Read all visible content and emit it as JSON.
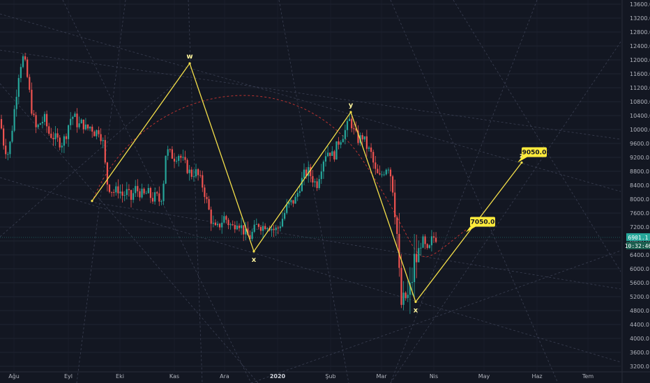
{
  "chart_data": {
    "type": "candlestick",
    "price_axis": {
      "min": 3200,
      "max": 13600,
      "ticks": [
        "13600.0",
        "13200.0",
        "12800.0",
        "12400.0",
        "12000.0",
        "11600.0",
        "11200.0",
        "10800.0",
        "10400.0",
        "10000.0",
        "9600.0",
        "9200.0",
        "8800.0",
        "8400.0",
        "8000.0",
        "7600.0",
        "7200.0",
        "6800.0",
        "6400.0",
        "6000.0",
        "5600.0",
        "5200.0",
        "4800.0",
        "4400.0",
        "4000.0",
        "3600.0",
        "3200.0"
      ]
    },
    "time_axis": {
      "labels": [
        {
          "text": "Ağu",
          "bold": false
        },
        {
          "text": "Eyl",
          "bold": false
        },
        {
          "text": "Eki",
          "bold": false
        },
        {
          "text": "Kas",
          "bold": false
        },
        {
          "text": "Ara",
          "bold": false
        },
        {
          "text": "2020",
          "bold": true
        },
        {
          "text": "Şub",
          "bold": false
        },
        {
          "text": "Mar",
          "bold": false
        },
        {
          "text": "Nis",
          "bold": false
        },
        {
          "text": "May",
          "bold": false
        },
        {
          "text": "Haz",
          "bold": false
        },
        {
          "text": "Tem",
          "bold": false
        }
      ]
    },
    "grid": true,
    "colors": {
      "background": "#131722",
      "up": "#26a69a",
      "down": "#ef5350",
      "pattern": "#f5e04a",
      "arc": "#e53935",
      "target_box": "#ffeb3b",
      "last_price_tag": "#26a69a"
    },
    "price_path": [
      {
        "t": 0,
        "p": 10300
      },
      {
        "t": 6,
        "p": 9500
      },
      {
        "t": 12,
        "p": 9300
      },
      {
        "t": 16,
        "p": 9800
      },
      {
        "t": 22,
        "p": 10800
      },
      {
        "t": 28,
        "p": 11800
      },
      {
        "t": 34,
        "p": 12100
      },
      {
        "t": 40,
        "p": 11400
      },
      {
        "t": 46,
        "p": 10500
      },
      {
        "t": 52,
        "p": 10000
      },
      {
        "t": 58,
        "p": 10200
      },
      {
        "t": 64,
        "p": 10300
      },
      {
        "t": 70,
        "p": 9900
      },
      {
        "t": 76,
        "p": 9800
      },
      {
        "t": 82,
        "p": 9700
      },
      {
        "t": 88,
        "p": 9600
      },
      {
        "t": 94,
        "p": 9800
      },
      {
        "t": 100,
        "p": 10300
      },
      {
        "t": 106,
        "p": 10400
      },
      {
        "t": 112,
        "p": 10100
      },
      {
        "t": 118,
        "p": 10200
      },
      {
        "t": 124,
        "p": 10000
      },
      {
        "t": 130,
        "p": 10100
      },
      {
        "t": 136,
        "p": 9900
      },
      {
        "t": 142,
        "p": 10000
      },
      {
        "t": 148,
        "p": 9600
      },
      {
        "t": 153,
        "p": 8500
      },
      {
        "t": 158,
        "p": 8300
      },
      {
        "t": 164,
        "p": 8200
      },
      {
        "t": 170,
        "p": 8300
      },
      {
        "t": 176,
        "p": 8100
      },
      {
        "t": 182,
        "p": 8200
      },
      {
        "t": 188,
        "p": 8000
      },
      {
        "t": 194,
        "p": 8300
      },
      {
        "t": 200,
        "p": 8200
      },
      {
        "t": 206,
        "p": 8100
      },
      {
        "t": 212,
        "p": 8200
      },
      {
        "t": 218,
        "p": 8000
      },
      {
        "t": 224,
        "p": 8100
      },
      {
        "t": 230,
        "p": 7900
      },
      {
        "t": 234,
        "p": 8400
      },
      {
        "t": 238,
        "p": 9400
      },
      {
        "t": 244,
        "p": 9300
      },
      {
        "t": 250,
        "p": 9200
      },
      {
        "t": 256,
        "p": 9300
      },
      {
        "t": 262,
        "p": 9100
      },
      {
        "t": 268,
        "p": 8900
      },
      {
        "t": 274,
        "p": 8700
      },
      {
        "t": 280,
        "p": 8800
      },
      {
        "t": 286,
        "p": 8600
      },
      {
        "t": 292,
        "p": 8300
      },
      {
        "t": 298,
        "p": 7800
      },
      {
        "t": 304,
        "p": 7300
      },
      {
        "t": 310,
        "p": 7100
      },
      {
        "t": 316,
        "p": 7300
      },
      {
        "t": 322,
        "p": 7500
      },
      {
        "t": 328,
        "p": 7300
      },
      {
        "t": 334,
        "p": 7200
      },
      {
        "t": 340,
        "p": 7400
      },
      {
        "t": 346,
        "p": 7200
      },
      {
        "t": 352,
        "p": 7000
      },
      {
        "t": 358,
        "p": 6900
      },
      {
        "t": 364,
        "p": 7100
      },
      {
        "t": 370,
        "p": 7300
      },
      {
        "t": 376,
        "p": 7200
      },
      {
        "t": 382,
        "p": 7300
      },
      {
        "t": 388,
        "p": 7200
      },
      {
        "t": 394,
        "p": 7100
      },
      {
        "t": 400,
        "p": 7200
      },
      {
        "t": 406,
        "p": 7500
      },
      {
        "t": 412,
        "p": 7800
      },
      {
        "t": 418,
        "p": 7900
      },
      {
        "t": 424,
        "p": 8000
      },
      {
        "t": 430,
        "p": 8400
      },
      {
        "t": 436,
        "p": 8700
      },
      {
        "t": 442,
        "p": 8800
      },
      {
        "t": 448,
        "p": 8600
      },
      {
        "t": 454,
        "p": 8400
      },
      {
        "t": 460,
        "p": 8900
      },
      {
        "t": 466,
        "p": 9300
      },
      {
        "t": 472,
        "p": 9400
      },
      {
        "t": 478,
        "p": 9200
      },
      {
        "t": 484,
        "p": 9600
      },
      {
        "t": 490,
        "p": 9800
      },
      {
        "t": 496,
        "p": 10000
      },
      {
        "t": 502,
        "p": 10300
      },
      {
        "t": 508,
        "p": 9900
      },
      {
        "t": 514,
        "p": 9700
      },
      {
        "t": 520,
        "p": 9800
      },
      {
        "t": 526,
        "p": 9500
      },
      {
        "t": 532,
        "p": 9300
      },
      {
        "t": 538,
        "p": 8800
      },
      {
        "t": 544,
        "p": 8600
      },
      {
        "t": 550,
        "p": 8800
      },
      {
        "t": 556,
        "p": 9000
      },
      {
        "t": 562,
        "p": 8700
      },
      {
        "t": 566,
        "p": 7900
      },
      {
        "t": 570,
        "p": 6800
      },
      {
        "t": 574,
        "p": 5000
      },
      {
        "t": 578,
        "p": 4900
      },
      {
        "t": 582,
        "p": 5200
      },
      {
        "t": 586,
        "p": 5100
      },
      {
        "t": 590,
        "p": 5600
      },
      {
        "t": 594,
        "p": 6200
      },
      {
        "t": 598,
        "p": 6300
      },
      {
        "t": 602,
        "p": 6700
      },
      {
        "t": 606,
        "p": 6800
      },
      {
        "t": 610,
        "p": 6600
      },
      {
        "t": 614,
        "p": 6400
      },
      {
        "t": 618,
        "p": 6800
      },
      {
        "t": 622,
        "p": 6900
      },
      {
        "t": 626,
        "p": 6901
      }
    ],
    "pattern_points": [
      {
        "label": "",
        "t": 132,
        "p": 7950
      },
      {
        "label": "w",
        "t": 272,
        "p": 11900
      },
      {
        "label": "x",
        "t": 364,
        "p": 6500
      },
      {
        "label": "y",
        "t": 503,
        "p": 10500
      },
      {
        "label": "x",
        "t": 596,
        "p": 5050
      },
      {
        "label": "z",
        "t": 748,
        "p": 9050
      }
    ],
    "targets": [
      {
        "label": "7050.0",
        "t": 668,
        "p": 7050
      },
      {
        "label": "9050.0",
        "t": 742,
        "p": 9050
      }
    ],
    "last_price": "6901.1",
    "countdown": "10:32:46"
  }
}
